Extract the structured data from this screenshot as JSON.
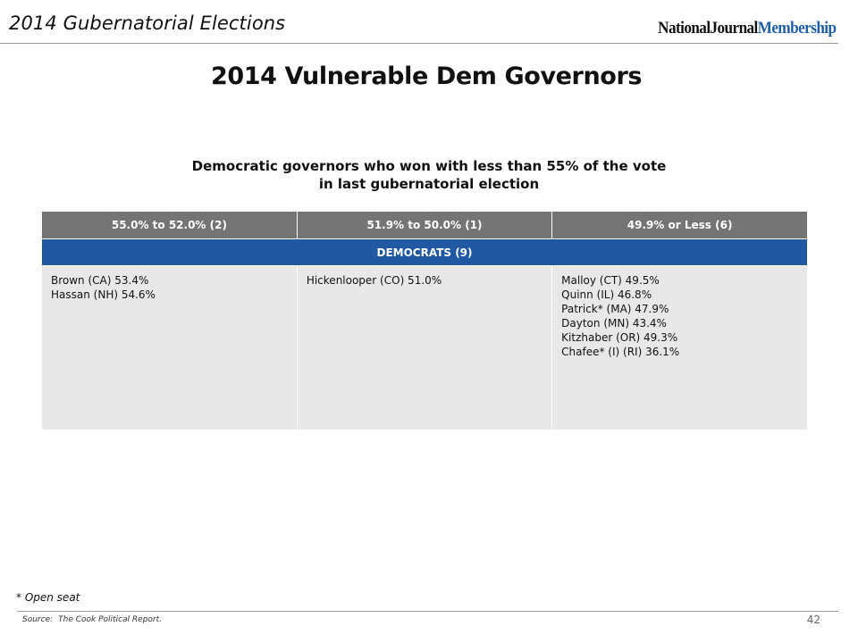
{
  "header": {
    "title": "2014 Gubernatorial Elections",
    "brand_part1": "NationalJournal",
    "brand_part2": "Membership"
  },
  "colors": {
    "header_gray": "#747474",
    "band_blue": "#2059a1",
    "cell_bg": "#e8e8e8",
    "brand_blue": "#1f5fa6"
  },
  "main_title": "2014 Vulnerable Dem Governors",
  "subtitle": {
    "line1": "Democratic governors who won with less than 55% of the vote",
    "line2": "in last gubernatorial election"
  },
  "table": {
    "columns": [
      "55.0% to 52.0% (2)",
      "51.9% to 50.0% (1)",
      "49.9% or Less (6)"
    ],
    "band_label": "DEMOCRATS (9)",
    "cells": [
      [
        "Brown (CA) 53.4%",
        "Hassan (NH) 54.6%"
      ],
      [
        "Hickenlooper (CO) 51.0%"
      ],
      [
        "Malloy (CT) 49.5%",
        "Quinn (IL) 46.8%",
        "Patrick* (MA) 47.9%",
        "Dayton (MN) 43.4%",
        "Kitzhaber (OR) 49.3%",
        "Chafee* (I) (RI) 36.1%"
      ]
    ]
  },
  "footnote": "* Open seat",
  "source": {
    "label": "Source:",
    "text": "The Cook Political Report."
  },
  "page_number": "42"
}
